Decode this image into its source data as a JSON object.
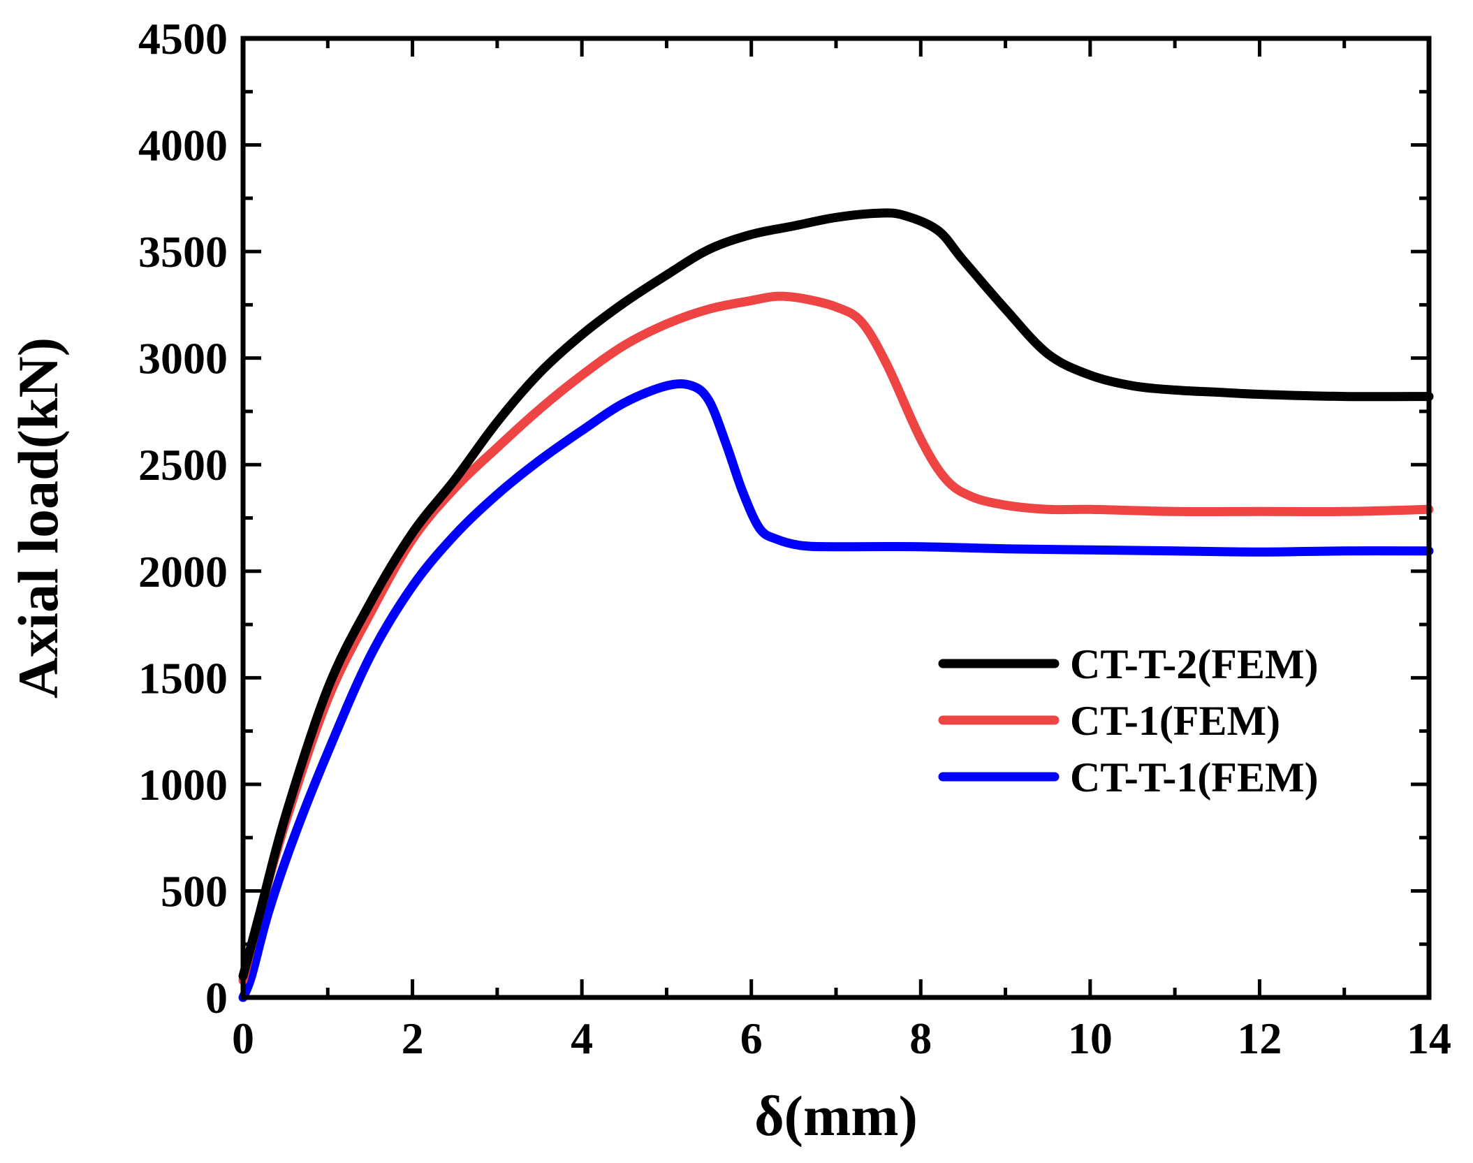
{
  "chart_data": {
    "type": "line",
    "title": "",
    "xlabel": "δ(mm)",
    "ylabel": "Axial load(kN)",
    "xlim": [
      0,
      14
    ],
    "ylim": [
      0,
      4500
    ],
    "xticks": [
      0,
      2,
      4,
      6,
      8,
      10,
      12,
      14
    ],
    "yticks": [
      0,
      500,
      1000,
      1500,
      2000,
      2500,
      3000,
      3500,
      4000,
      4500
    ],
    "xtick_labels": [
      "0",
      "2",
      "4",
      "6",
      "8",
      "10",
      "12",
      "14"
    ],
    "ytick_labels": [
      "0",
      "500",
      "1000",
      "1500",
      "2000",
      "2500",
      "3000",
      "3500",
      "4000",
      "4500"
    ],
    "grid": false,
    "legend_position": "center-right",
    "series": [
      {
        "name": "CT-T-2(FEM)",
        "color": "#000000",
        "x": [
          0,
          0.2,
          0.5,
          1.0,
          1.5,
          2.0,
          2.5,
          3.0,
          3.5,
          4.0,
          4.5,
          5.0,
          5.5,
          6.0,
          6.5,
          7.0,
          7.5,
          7.8,
          8.2,
          8.5,
          9.0,
          9.5,
          10.0,
          10.5,
          11.0,
          11.5,
          12.0,
          13.0,
          14.0
        ],
        "y": [
          100,
          400,
          850,
          1450,
          1850,
          2180,
          2430,
          2700,
          2930,
          3110,
          3260,
          3390,
          3510,
          3580,
          3620,
          3660,
          3680,
          3670,
          3600,
          3460,
          3230,
          3020,
          2920,
          2870,
          2850,
          2840,
          2830,
          2820,
          2820
        ]
      },
      {
        "name": "CT-1(FEM)",
        "color": "#EE4444",
        "x": [
          0,
          0.2,
          0.5,
          1.0,
          1.5,
          2.0,
          2.5,
          3.0,
          3.5,
          4.0,
          4.5,
          5.0,
          5.5,
          6.0,
          6.3,
          6.6,
          7.0,
          7.3,
          7.6,
          8.0,
          8.3,
          8.6,
          9.0,
          9.5,
          10.0,
          11.0,
          12.0,
          13.0,
          14.0
        ],
        "y": [
          80,
          400,
          820,
          1400,
          1800,
          2150,
          2390,
          2580,
          2760,
          2920,
          3060,
          3160,
          3230,
          3270,
          3290,
          3280,
          3240,
          3170,
          2970,
          2620,
          2430,
          2350,
          2310,
          2290,
          2290,
          2280,
          2280,
          2280,
          2290
        ]
      },
      {
        "name": "CT-T-1(FEM)",
        "color": "#0000FF",
        "x": [
          0,
          0.1,
          0.3,
          0.6,
          1.0,
          1.5,
          2.0,
          2.5,
          3.0,
          3.5,
          4.0,
          4.5,
          5.0,
          5.3,
          5.5,
          5.7,
          5.9,
          6.1,
          6.3,
          6.6,
          7.0,
          8.0,
          9.0,
          10.0,
          11.0,
          12.0,
          13.0,
          14.0
        ],
        "y": [
          0,
          100,
          400,
          750,
          1150,
          1600,
          1930,
          2170,
          2360,
          2520,
          2660,
          2790,
          2870,
          2870,
          2800,
          2600,
          2370,
          2200,
          2150,
          2120,
          2115,
          2115,
          2105,
          2100,
          2095,
          2090,
          2095,
          2095
        ]
      }
    ]
  }
}
